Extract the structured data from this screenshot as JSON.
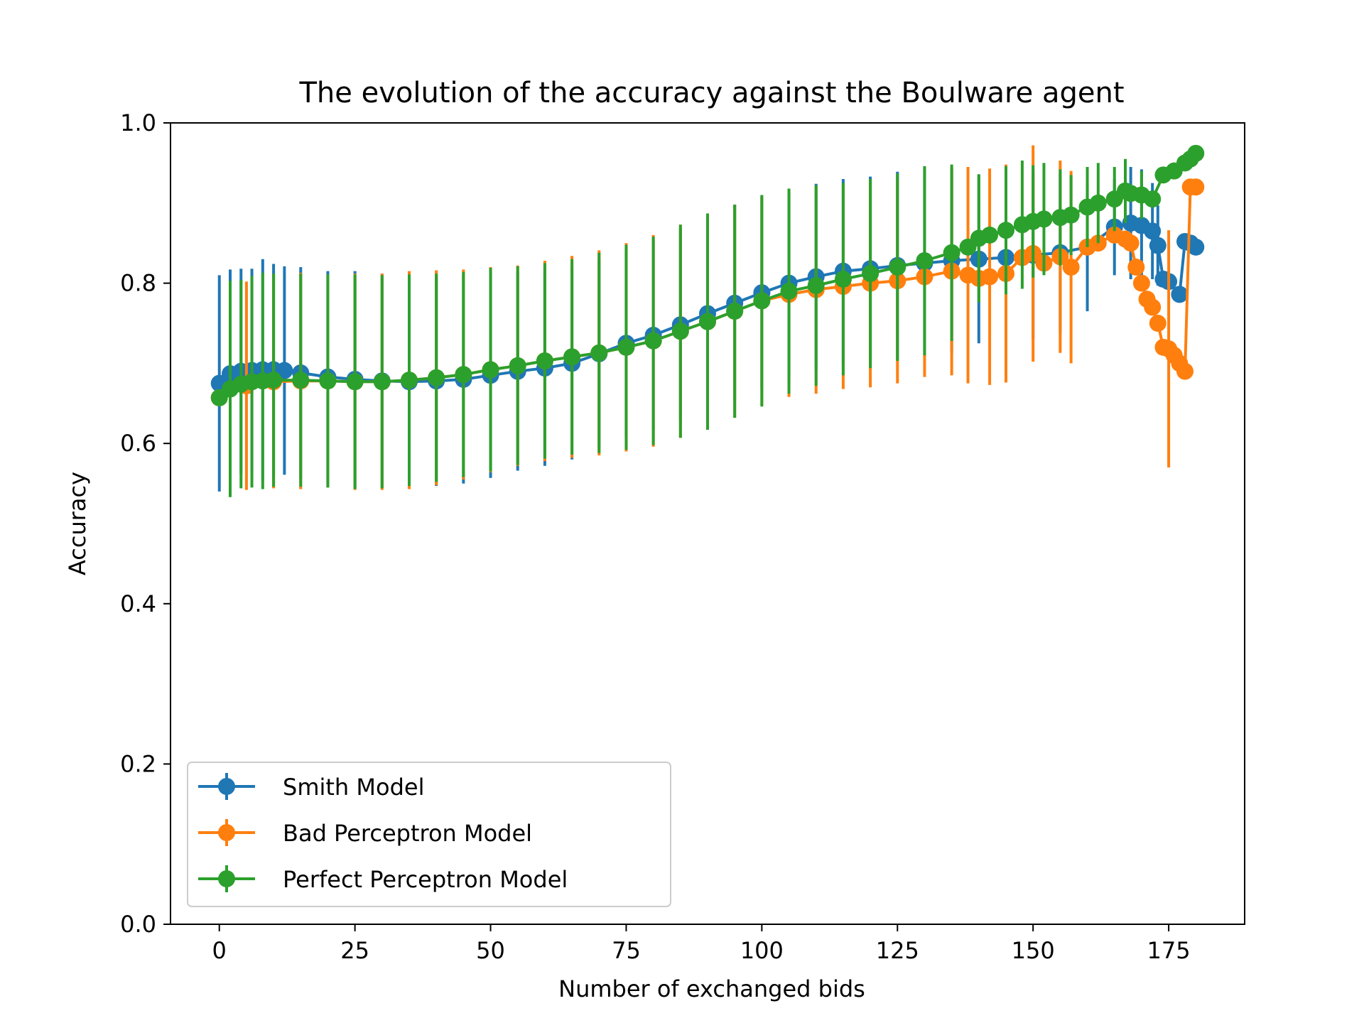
{
  "chart_data": {
    "type": "line",
    "title": "The evolution of the accuracy against the Boulware agent",
    "xlabel": "Number of exchanged bids",
    "ylabel": "Accuracy",
    "xlim": [
      -9,
      189
    ],
    "ylim": [
      0,
      1
    ],
    "x_ticks": [
      0,
      25,
      50,
      75,
      100,
      125,
      150,
      175
    ],
    "x_tick_labels": [
      "0",
      "25",
      "50",
      "75",
      "100",
      "125",
      "150",
      "175"
    ],
    "y_ticks": [
      0,
      0.2,
      0.4,
      0.6,
      0.8,
      1.0
    ],
    "y_tick_labels": [
      "0.0",
      "0.2",
      "0.4",
      "0.6",
      "0.8",
      "1.0"
    ],
    "grid": false,
    "legend_position": "lower-left",
    "series": [
      {
        "name": "Smith Model",
        "color": "#1f77b4",
        "x": [
          0,
          2,
          4,
          6,
          8,
          10,
          12,
          15,
          20,
          25,
          30,
          35,
          40,
          45,
          50,
          55,
          60,
          65,
          70,
          75,
          80,
          85,
          90,
          95,
          100,
          105,
          110,
          115,
          120,
          125,
          130,
          135,
          140,
          145,
          150,
          155,
          160,
          165,
          168,
          170,
          172,
          173,
          174,
          175,
          177,
          178,
          179,
          180
        ],
        "y": [
          0.675,
          0.687,
          0.69,
          0.691,
          0.692,
          0.692,
          0.691,
          0.688,
          0.683,
          0.68,
          0.678,
          0.677,
          0.678,
          0.68,
          0.685,
          0.69,
          0.694,
          0.7,
          0.712,
          0.725,
          0.735,
          0.748,
          0.762,
          0.775,
          0.788,
          0.8,
          0.808,
          0.815,
          0.818,
          0.822,
          0.825,
          0.828,
          0.83,
          0.832,
          0.835,
          0.838,
          0.845,
          0.87,
          0.875,
          0.872,
          0.865,
          0.847,
          0.805,
          0.802,
          0.786,
          0.852,
          0.85,
          0.845
        ],
        "errors": [
          0.135,
          0.13,
          0.128,
          0.127,
          0.138,
          0.132,
          0.13,
          0.132,
          0.132,
          0.135,
          0.134,
          0.133,
          0.131,
          0.13,
          0.128,
          0.124,
          0.122,
          0.12,
          0.118,
          0.117,
          0.118,
          0.12,
          0.121,
          0.122,
          0.12,
          0.118,
          0.116,
          0.115,
          0.115,
          0.117,
          0.118,
          0.115,
          0.105,
          0.09,
          0.105,
          0.1,
          0.08,
          0.06,
          0.07,
          0.07,
          0.06,
          0.05,
          0.0,
          0.0,
          0.0,
          0.0,
          0.0,
          0.0
        ]
      },
      {
        "name": "Bad Perceptron Model",
        "color": "#ff7f0e",
        "x": [
          0,
          5,
          10,
          15,
          20,
          25,
          30,
          35,
          40,
          45,
          50,
          55,
          60,
          65,
          70,
          75,
          80,
          85,
          90,
          95,
          100,
          105,
          110,
          115,
          120,
          125,
          130,
          135,
          138,
          140,
          142,
          145,
          148,
          150,
          152,
          155,
          157,
          160,
          162,
          165,
          167,
          168,
          169,
          170,
          171,
          172,
          173,
          174,
          175,
          176,
          177,
          178,
          179,
          180
        ],
        "y": [
          0.657,
          0.672,
          0.677,
          0.678,
          0.678,
          0.677,
          0.677,
          0.679,
          0.682,
          0.686,
          0.692,
          0.697,
          0.703,
          0.708,
          0.713,
          0.72,
          0.728,
          0.74,
          0.752,
          0.765,
          0.778,
          0.786,
          0.792,
          0.796,
          0.8,
          0.803,
          0.808,
          0.815,
          0.81,
          0.806,
          0.808,
          0.812,
          0.832,
          0.837,
          0.825,
          0.833,
          0.82,
          0.845,
          0.85,
          0.86,
          0.855,
          0.85,
          0.82,
          0.8,
          0.78,
          0.77,
          0.75,
          0.72,
          0.718,
          0.71,
          0.7,
          0.69,
          0.92,
          0.92
        ],
        "errors": [
          0.0,
          0.13,
          0.133,
          0.135,
          0.133,
          0.135,
          0.135,
          0.136,
          0.134,
          0.131,
          0.128,
          0.125,
          0.125,
          0.126,
          0.128,
          0.13,
          0.132,
          0.133,
          0.135,
          0.133,
          0.13,
          0.128,
          0.13,
          0.128,
          0.13,
          0.128,
          0.125,
          0.13,
          0.135,
          0.0,
          0.135,
          0.136,
          0.0,
          0.135,
          0.0,
          0.12,
          0.12,
          0.0,
          0.0,
          0.0,
          0.0,
          0.0,
          0.0,
          0.0,
          0.0,
          0.0,
          0.0,
          0.0,
          0.148,
          0.0,
          0.0,
          0.0,
          0.0,
          0.0
        ]
      },
      {
        "name": "Perfect Perceptron Model",
        "color": "#2ca02c",
        "x": [
          0,
          2,
          4,
          6,
          8,
          10,
          15,
          20,
          25,
          30,
          35,
          40,
          45,
          50,
          55,
          60,
          65,
          70,
          75,
          80,
          85,
          90,
          95,
          100,
          105,
          110,
          115,
          120,
          125,
          130,
          135,
          138,
          140,
          142,
          145,
          148,
          150,
          152,
          155,
          157,
          160,
          162,
          165,
          167,
          168,
          170,
          172,
          174,
          176,
          178,
          179,
          180
        ],
        "y": [
          0.657,
          0.668,
          0.674,
          0.677,
          0.678,
          0.679,
          0.679,
          0.678,
          0.677,
          0.677,
          0.679,
          0.682,
          0.686,
          0.692,
          0.697,
          0.703,
          0.708,
          0.713,
          0.72,
          0.728,
          0.74,
          0.752,
          0.765,
          0.778,
          0.79,
          0.797,
          0.805,
          0.812,
          0.82,
          0.828,
          0.838,
          0.845,
          0.856,
          0.86,
          0.866,
          0.873,
          0.877,
          0.88,
          0.882,
          0.885,
          0.895,
          0.9,
          0.905,
          0.915,
          0.912,
          0.91,
          0.905,
          0.935,
          0.94,
          0.95,
          0.955,
          0.962
        ],
        "errors": [
          0.0,
          0.135,
          0.13,
          0.132,
          0.135,
          0.133,
          0.133,
          0.133,
          0.134,
          0.133,
          0.132,
          0.13,
          0.128,
          0.127,
          0.124,
          0.122,
          0.122,
          0.125,
          0.128,
          0.13,
          0.133,
          0.135,
          0.133,
          0.132,
          0.128,
          0.125,
          0.12,
          0.118,
          0.117,
          0.118,
          0.11,
          0.0,
          0.08,
          0.0,
          0.08,
          0.08,
          0.07,
          0.07,
          0.06,
          0.05,
          0.05,
          0.05,
          0.04,
          0.04,
          0.0,
          0.03,
          0.0,
          0.0,
          0.0,
          0.0,
          0.0,
          0.0
        ]
      }
    ]
  }
}
